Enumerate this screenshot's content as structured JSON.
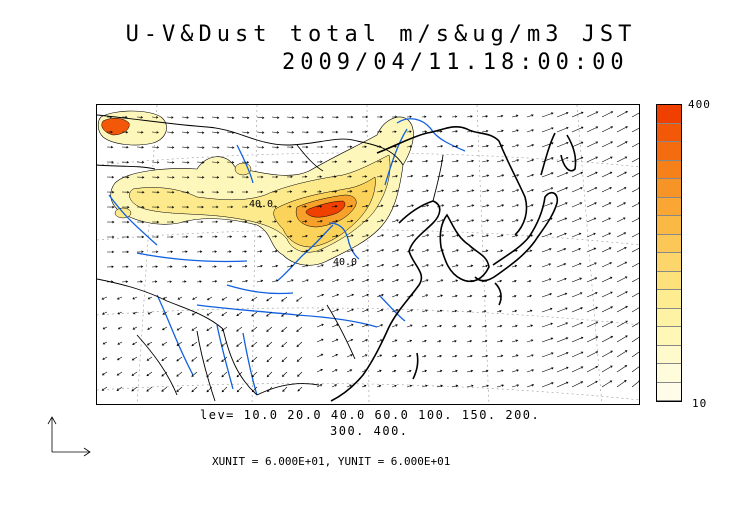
{
  "title": {
    "line1": "U-V&Dust total m/s&ug/m3 JST",
    "line2": "2009/04/11.18:00:00"
  },
  "contour_levels": {
    "line1": "lev= 10.0 20.0 40.0 60.0 100. 150. 200.",
    "line2": "300. 400.",
    "values": [
      10,
      20,
      40,
      60,
      100,
      150,
      200,
      300,
      400
    ]
  },
  "contour_labels": [
    "40.0",
    "40.0"
  ],
  "vector_units": "XUNIT = 6.000E+01, YUNIT = 6.000E+01",
  "colorbar": {
    "max_label": "400",
    "min_label": "10",
    "colors": [
      "#f04000",
      "#f25808",
      "#f46c10",
      "#f6801a",
      "#f79426",
      "#f9a634",
      "#fab844",
      "#fbc858",
      "#fcd66a",
      "#fde27c",
      "#fdec90",
      "#fef3a4",
      "#fef7b8",
      "#fefacb",
      "#fffcdc",
      "#fffde9"
    ]
  },
  "colors": {
    "coastline": "#000000",
    "rivers": "#1060e0",
    "dust_low": "#fdf0a0",
    "dust_mid": "#fbd860",
    "dust_high": "#f04000"
  }
}
